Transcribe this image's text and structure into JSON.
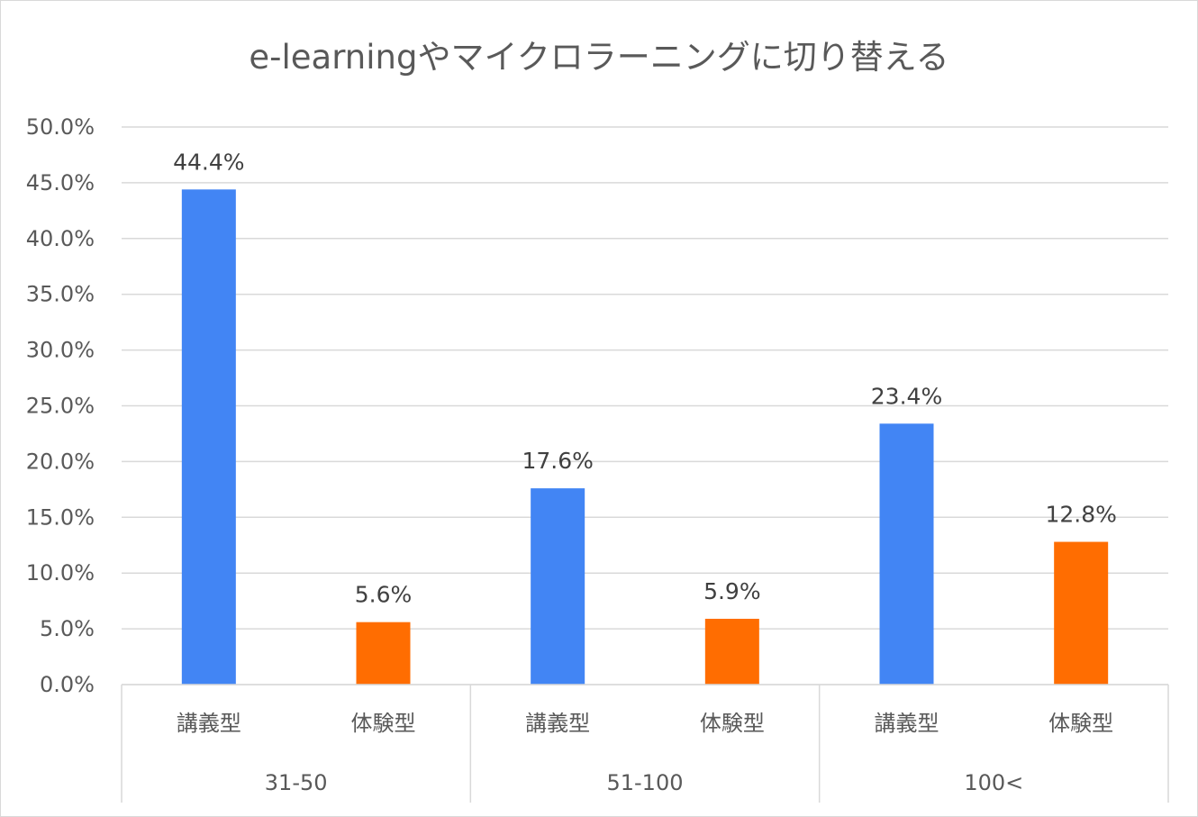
{
  "chart_data": {
    "type": "bar",
    "title": "e-learningやマイクロラーニングに切り替える",
    "xlabel": "",
    "ylabel": "",
    "ylim": [
      0,
      50
    ],
    "y_ticks": [
      "0.0%",
      "5.0%",
      "10.0%",
      "15.0%",
      "20.0%",
      "25.0%",
      "30.0%",
      "35.0%",
      "40.0%",
      "45.0%",
      "50.0%"
    ],
    "grid": true,
    "legend": "none",
    "groups": [
      {
        "label": "31-50",
        "bars": [
          {
            "category": "講義型",
            "value": 44.4,
            "label": "44.4%",
            "color": "#4285f4"
          },
          {
            "category": "体験型",
            "value": 5.6,
            "label": "5.6%",
            "color": "#ff6d01"
          }
        ]
      },
      {
        "label": "51-100",
        "bars": [
          {
            "category": "講義型",
            "value": 17.6,
            "label": "17.6%",
            "color": "#4285f4"
          },
          {
            "category": "体験型",
            "value": 5.9,
            "label": "5.9%",
            "color": "#ff6d01"
          }
        ]
      },
      {
        "label": "100<",
        "bars": [
          {
            "category": "講義型",
            "value": 23.4,
            "label": "23.4%",
            "color": "#4285f4"
          },
          {
            "category": "体験型",
            "value": 12.8,
            "label": "12.8%",
            "color": "#ff6d01"
          }
        ]
      }
    ]
  }
}
